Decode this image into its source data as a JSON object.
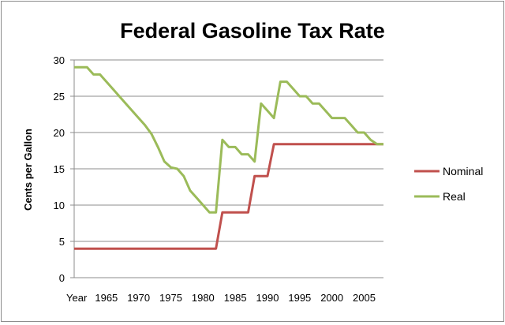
{
  "chart_data": {
    "type": "line",
    "title": "Federal Gasoline Tax Rate",
    "xlabel": "",
    "ylabel": "Cents per Gallon",
    "ylim": [
      0,
      30
    ],
    "yticks": [
      "0",
      "5",
      "10",
      "15",
      "20",
      "25",
      "30"
    ],
    "xlim": [
      1960,
      2008
    ],
    "xticks": [
      "Year",
      "1965",
      "1970",
      "1975",
      "1980",
      "1985",
      "1990",
      "1995",
      "2000",
      "2005"
    ],
    "grid": "horizontal",
    "legend": "right",
    "series": [
      {
        "name": "Nominal",
        "color": "#c0504d",
        "points": [
          [
            1960,
            4
          ],
          [
            1982,
            4
          ],
          [
            1983,
            9
          ],
          [
            1987,
            9
          ],
          [
            1988,
            14
          ],
          [
            1990,
            14
          ],
          [
            1991,
            18.4
          ],
          [
            2008,
            18.4
          ]
        ]
      },
      {
        "name": "Real",
        "color": "#9bbb59",
        "points": [
          [
            1960,
            29
          ],
          [
            1962,
            29
          ],
          [
            1963,
            28
          ],
          [
            1964,
            28
          ],
          [
            1966,
            26
          ],
          [
            1968,
            24
          ],
          [
            1970,
            22
          ],
          [
            1971,
            21
          ],
          [
            1972,
            19.8
          ],
          [
            1973,
            18
          ],
          [
            1974,
            16
          ],
          [
            1975,
            15.2
          ],
          [
            1976,
            15
          ],
          [
            1977,
            14
          ],
          [
            1978,
            12
          ],
          [
            1979,
            11
          ],
          [
            1980,
            10
          ],
          [
            1981,
            9
          ],
          [
            1982,
            9
          ],
          [
            1983,
            19
          ],
          [
            1984,
            18
          ],
          [
            1985,
            18
          ],
          [
            1986,
            17
          ],
          [
            1987,
            17
          ],
          [
            1988,
            16
          ],
          [
            1989,
            24
          ],
          [
            1990,
            23
          ],
          [
            1991,
            22
          ],
          [
            1992,
            27
          ],
          [
            1993,
            27
          ],
          [
            1994,
            26
          ],
          [
            1995,
            25
          ],
          [
            1996,
            25
          ],
          [
            1997,
            24
          ],
          [
            1998,
            24
          ],
          [
            1999,
            23
          ],
          [
            2000,
            22
          ],
          [
            2001,
            22
          ],
          [
            2002,
            22
          ],
          [
            2003,
            21
          ],
          [
            2004,
            20
          ],
          [
            2005,
            20
          ],
          [
            2006,
            19
          ],
          [
            2007,
            18.4
          ],
          [
            2008,
            18.4
          ]
        ]
      }
    ]
  }
}
